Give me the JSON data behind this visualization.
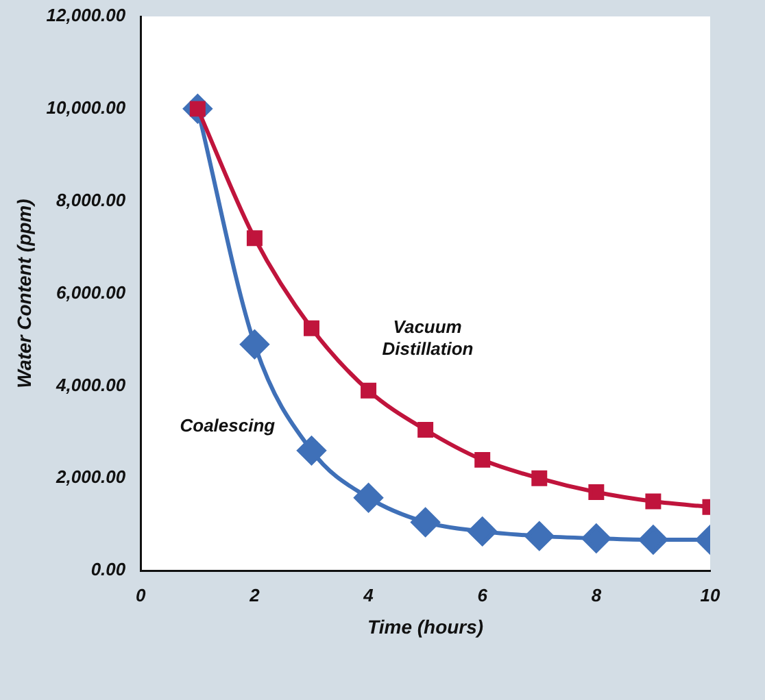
{
  "chart_data": {
    "type": "line",
    "xlabel": "Time (hours)",
    "ylabel": "Water Content (ppm)",
    "x": [
      1,
      2,
      3,
      4,
      5,
      6,
      7,
      8,
      9,
      10
    ],
    "series": [
      {
        "name": "Vacuum Distillation",
        "color": "#c0143c",
        "marker": "square",
        "values": [
          10000,
          7200,
          5250,
          3900,
          3050,
          2400,
          2000,
          1700,
          1500,
          1380
        ]
      },
      {
        "name": "Coalescing",
        "color": "#3f70b8",
        "marker": "diamond",
        "values": [
          10000,
          4900,
          2600,
          1580,
          1050,
          850,
          750,
          700,
          670,
          670
        ]
      }
    ],
    "xlim": [
      0,
      10
    ],
    "xticks": [
      0,
      2,
      4,
      6,
      8,
      10
    ],
    "ylim": [
      0,
      12000
    ],
    "yticks": [
      {
        "value": 0,
        "label": "0.00"
      },
      {
        "value": 2000,
        "label": "2,000.00"
      },
      {
        "value": 4000,
        "label": "4,000.00"
      },
      {
        "value": 6000,
        "label": "6,000.00"
      },
      {
        "value": 8000,
        "label": "8,000.00"
      },
      {
        "value": 10000,
        "label": "10,000.00"
      },
      {
        "value": 12000,
        "label": "12,000.00"
      }
    ],
    "grid": false,
    "legend": false
  }
}
